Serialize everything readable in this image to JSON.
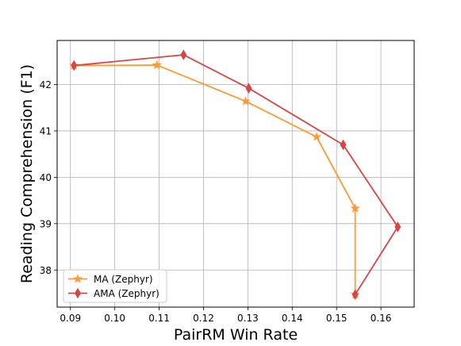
{
  "chart_data": {
    "type": "line",
    "xlabel": "PairRM Win Rate",
    "ylabel": "Reading Comprehension (F1)",
    "xlim": [
      0.087,
      0.1675
    ],
    "ylim": [
      37.2,
      42.95
    ],
    "xticks": [
      "0.09",
      "0.10",
      "0.11",
      "0.12",
      "0.13",
      "0.14",
      "0.15",
      "0.16"
    ],
    "yticks": [
      "38",
      "39",
      "40",
      "41",
      "42"
    ],
    "grid": true,
    "legend_position": "lower-left",
    "series": [
      {
        "name": "MA (Zephyr)",
        "color": "#ff9933",
        "marker": "star",
        "x": [
          0.0908,
          0.1095,
          0.1295,
          0.1455,
          0.1542,
          0.1542
        ],
        "y": [
          42.41,
          42.42,
          41.64,
          40.87,
          39.33,
          37.47
        ]
      },
      {
        "name": "AMA (Zephyr)",
        "color": "#d94545",
        "marker": "diamond",
        "x": [
          0.0908,
          0.1155,
          0.1302,
          0.1515,
          0.1638,
          0.1542
        ],
        "y": [
          42.41,
          42.64,
          41.92,
          40.7,
          38.93,
          37.47
        ]
      }
    ]
  }
}
